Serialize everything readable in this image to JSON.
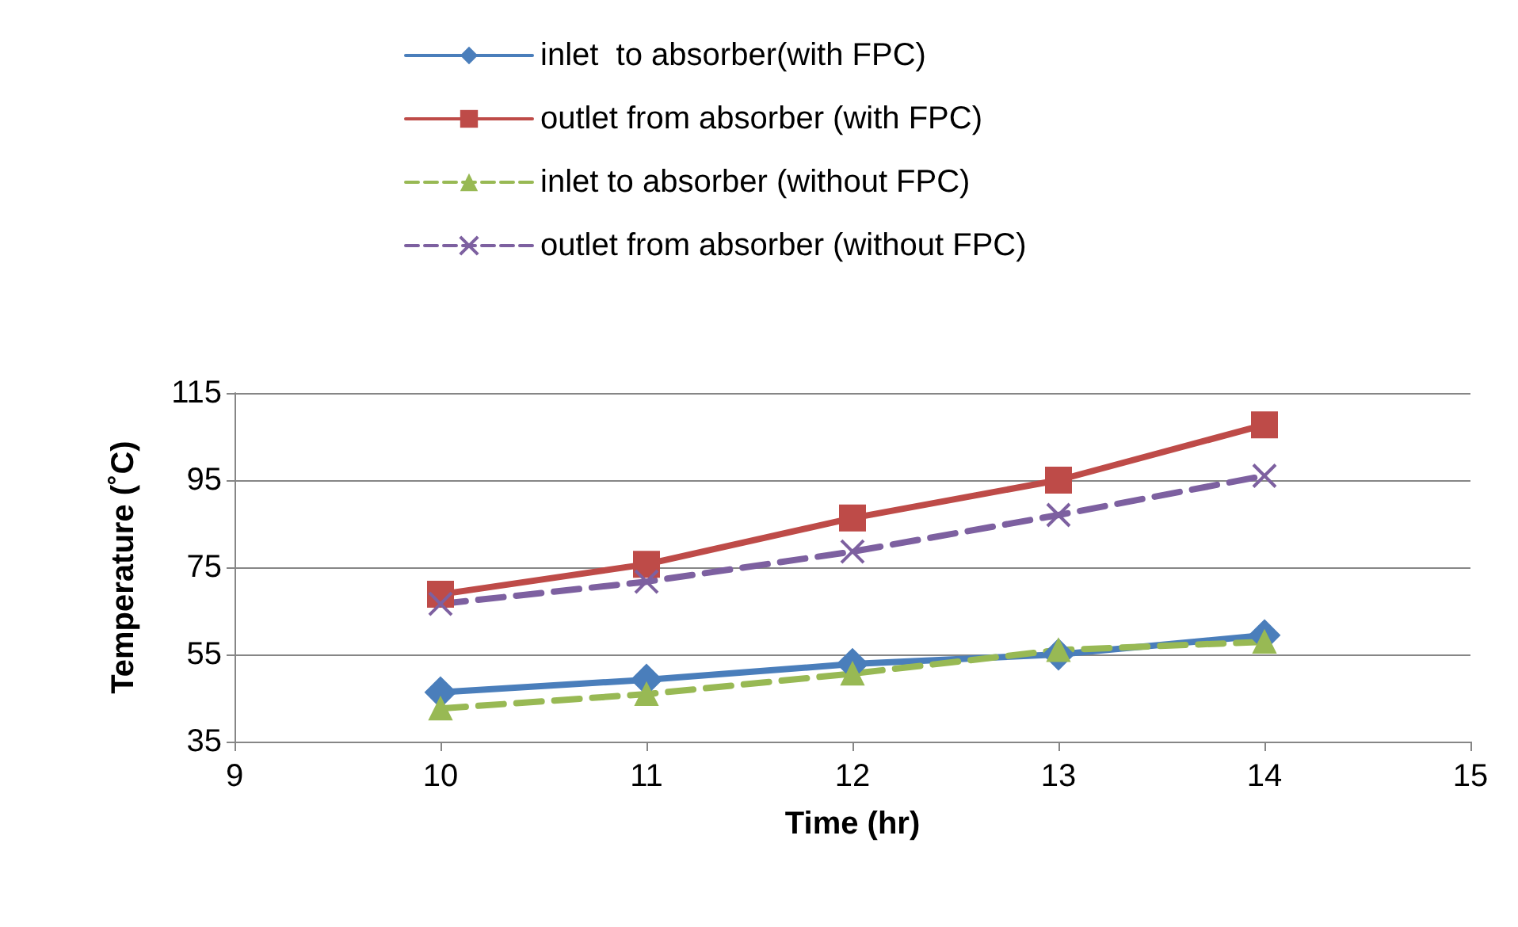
{
  "chart_data": {
    "type": "line",
    "xlabel": "Time (hr)",
    "ylabel": "Temperature (˚C)",
    "x": [
      10,
      11,
      12,
      13,
      14
    ],
    "xlim": [
      9,
      15
    ],
    "xticks": [
      9,
      10,
      11,
      12,
      13,
      14,
      15
    ],
    "ylim": [
      35,
      115
    ],
    "yticks": [
      35,
      55,
      75,
      95,
      115
    ],
    "grid": "y",
    "legend": "top",
    "series": [
      {
        "name": "inlet  to absorber(with FPC)",
        "color": "#4a7ebb",
        "marker": "diamond",
        "line_style": "solid",
        "values": [
          46.3,
          49.2,
          52.8,
          55,
          59.4
        ]
      },
      {
        "name": "outlet from absorber (with FPC)",
        "color": "#be4b48",
        "marker": "square",
        "line_style": "solid",
        "values": [
          68.8,
          75.7,
          86.3,
          95,
          107.7
        ]
      },
      {
        "name": "inlet to absorber (without FPC)",
        "color": "#98b954",
        "marker": "triangle",
        "line_style": "dashed",
        "values": [
          42.6,
          45.9,
          50.6,
          56,
          57.9
        ]
      },
      {
        "name": "outlet from absorber (without FPC)",
        "color": "#7d60a0",
        "marker": "cross",
        "line_style": "dashed",
        "values": [
          66.6,
          71.7,
          78.6,
          87,
          96
        ]
      }
    ]
  }
}
